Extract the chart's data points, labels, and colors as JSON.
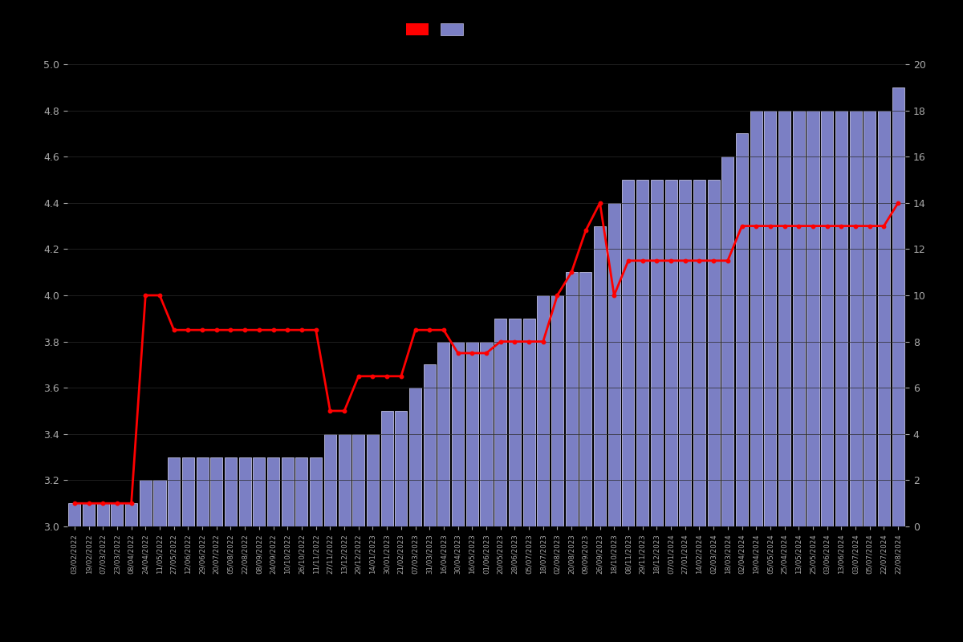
{
  "background_color": "#000000",
  "bar_color": "#7b7fc4",
  "bar_edge_color": "#c0c0e0",
  "line_color": "#ff0000",
  "line_marker_color": "#ff0000",
  "left_ylim": [
    3.0,
    5.0
  ],
  "right_ylim": [
    0,
    20
  ],
  "left_yticks": [
    3.0,
    3.2,
    3.4,
    3.6,
    3.8,
    4.0,
    4.2,
    4.4,
    4.6,
    4.8,
    5.0
  ],
  "right_yticks": [
    0,
    2,
    4,
    6,
    8,
    10,
    12,
    14,
    16,
    18,
    20
  ],
  "tick_color": "#aaaaaa",
  "grid_color": "#2a2a2a",
  "dates": [
    "03/02/2022",
    "19/02/2022",
    "07/03/2022",
    "23/03/2022",
    "08/04/2022",
    "24/04/2022",
    "11/05/2022",
    "27/05/2022",
    "12/06/2022",
    "29/06/2022",
    "20/07/2022",
    "05/08/2022",
    "22/08/2022",
    "08/09/2022",
    "24/09/2022",
    "10/10/2022",
    "26/10/2022",
    "11/11/2022",
    "27/11/2022",
    "13/12/2022",
    "29/12/2022",
    "14/01/2023",
    "30/01/2023",
    "21/02/2023",
    "07/03/2023",
    "31/03/2023",
    "16/04/2023",
    "30/04/2023",
    "16/05/2023",
    "01/06/2023",
    "20/05/2023",
    "28/06/2023",
    "05/07/2023",
    "18/07/2023",
    "02/08/2023",
    "20/08/2023",
    "09/09/2023",
    "26/09/2023",
    "18/10/2023",
    "08/11/2023",
    "29/11/2023",
    "18/12/2023",
    "07/01/2024",
    "27/01/2024",
    "14/02/2024",
    "02/03/2024",
    "18/03/2024",
    "02/04/2024",
    "19/04/2024",
    "05/05/2024",
    "25/04/2024",
    "13/05/2024",
    "25/05/2024",
    "03/06/2024",
    "13/06/2024",
    "03/07/2024",
    "05/07/2024",
    "22/07/2024",
    "22/08/2024"
  ],
  "bar_heights": [
    1,
    1,
    1,
    1,
    1,
    2,
    2,
    3,
    3,
    3,
    3,
    3,
    3,
    3,
    3,
    3,
    3,
    3,
    4,
    4,
    4,
    4,
    5,
    5,
    6,
    7,
    8,
    8,
    8,
    8,
    9,
    9,
    9,
    10,
    10,
    11,
    11,
    13,
    14,
    15,
    15,
    15,
    15,
    15,
    15,
    15,
    16,
    17,
    18,
    18,
    18,
    18,
    18,
    18,
    18,
    18,
    18,
    18,
    19
  ],
  "line_values": [
    3.1,
    3.1,
    3.1,
    3.1,
    3.1,
    4.0,
    4.0,
    3.85,
    3.85,
    3.85,
    3.85,
    3.85,
    3.85,
    3.85,
    3.85,
    3.85,
    3.85,
    3.85,
    3.5,
    3.5,
    3.65,
    3.65,
    3.65,
    3.65,
    3.85,
    3.85,
    3.85,
    3.75,
    3.75,
    3.75,
    3.8,
    3.8,
    3.8,
    3.8,
    4.0,
    4.1,
    4.28,
    4.4,
    4.0,
    4.15,
    4.15,
    4.15,
    4.15,
    4.15,
    4.15,
    4.15,
    4.15,
    4.3,
    4.3,
    4.3,
    4.3,
    4.3,
    4.3,
    4.3,
    4.3,
    4.3,
    4.3,
    4.3,
    4.4
  ]
}
